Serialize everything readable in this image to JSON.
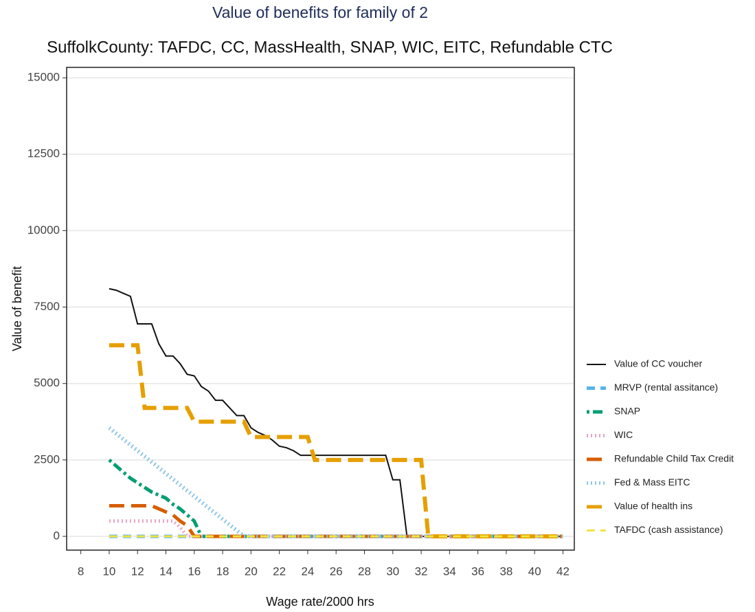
{
  "chart_data": {
    "type": "line",
    "title": "Value of benefits for family of 2",
    "subtitle": "SuffolkCounty: TAFDC, CC, MassHealth, SNAP, WIC, EITC, Refundable CTC",
    "x_label": "Wage rate/2000 hrs",
    "y_label": "Value of benefit",
    "xlim": [
      7,
      42.8
    ],
    "ylim": [
      -450,
      15340
    ],
    "xticks": [
      8,
      10,
      12,
      14,
      16,
      18,
      20,
      22,
      24,
      26,
      28,
      30,
      32,
      34,
      36,
      38,
      40,
      42
    ],
    "yticks": [
      0,
      2500,
      5000,
      7500,
      10000,
      12500,
      15000
    ],
    "grid": true,
    "legend": "right",
    "x": [
      10,
      10.5,
      11,
      11.5,
      12,
      12.5,
      13,
      13.5,
      14,
      14.5,
      15,
      15.5,
      16,
      16.5,
      17,
      17.5,
      18,
      18.5,
      19,
      19.5,
      20,
      20.5,
      21,
      21.5,
      22,
      22.5,
      23,
      23.5,
      24,
      24.5,
      25,
      25.5,
      26,
      26.5,
      27,
      27.5,
      28,
      28.5,
      29,
      29.5,
      30,
      30.5,
      31,
      31.5,
      32,
      32.5,
      33,
      33.5,
      34,
      34.5,
      35,
      35.5,
      36,
      36.5,
      37,
      37.5,
      38,
      38.5,
      39,
      39.5,
      40,
      40.5,
      41,
      41.5,
      42
    ],
    "series": [
      {
        "name": "Value of CC voucher",
        "color": "#111111",
        "linestyle": "solid",
        "width": 2,
        "values": [
          8100,
          8050,
          7950,
          7850,
          6950,
          6950,
          6950,
          6300,
          5900,
          5900,
          5650,
          5300,
          5250,
          4900,
          4750,
          4450,
          4450,
          4200,
          3950,
          3950,
          3550,
          3400,
          3300,
          3150,
          2950,
          2900,
          2800,
          2650,
          2650,
          2650,
          2650,
          2650,
          2650,
          2650,
          2650,
          2650,
          2650,
          2650,
          2650,
          2650,
          1850,
          1850,
          0,
          0,
          0,
          0,
          0,
          0,
          0,
          0,
          0,
          0,
          0,
          0,
          0,
          0,
          0,
          0,
          0,
          0,
          0,
          0,
          0,
          0,
          0
        ]
      },
      {
        "name": "MRVP (rental assitance)",
        "color": "#56b4e9",
        "linestyle": "dashed",
        "width": 5,
        "values": [
          0,
          0,
          0,
          0,
          0,
          0,
          0,
          0,
          0,
          0,
          0,
          0,
          0,
          0,
          0,
          0,
          0,
          0,
          0,
          0,
          0,
          0,
          0,
          0,
          0,
          0,
          0,
          0,
          0,
          0,
          0,
          0,
          0,
          0,
          0,
          0,
          0,
          0,
          0,
          0,
          0,
          0,
          0,
          0,
          0,
          0,
          0,
          0,
          0,
          0,
          0,
          0,
          0,
          0,
          0,
          0,
          0,
          0,
          0,
          0,
          0,
          0,
          0,
          0,
          0
        ]
      },
      {
        "name": "SNAP",
        "color": "#009e73",
        "linestyle": "dotdash",
        "width": 5,
        "values": [
          2500,
          2300,
          2100,
          1900,
          1750,
          1600,
          1450,
          1350,
          1250,
          1050,
          900,
          700,
          500,
          0,
          0,
          0,
          0,
          0,
          0,
          0,
          0,
          0,
          0,
          0,
          0,
          0,
          0,
          0,
          0,
          0,
          0,
          0,
          0,
          0,
          0,
          0,
          0,
          0,
          0,
          0,
          0,
          0,
          0,
          0,
          0,
          0,
          0,
          0,
          0,
          0,
          0,
          0,
          0,
          0,
          0,
          0,
          0,
          0,
          0,
          0,
          0,
          0,
          0,
          0,
          0
        ]
      },
      {
        "name": "WIC",
        "color": "#e7a3c8",
        "linestyle": "dotted",
        "width": 5,
        "values": [
          500,
          500,
          500,
          500,
          500,
          500,
          500,
          500,
          500,
          500,
          300,
          0,
          0,
          0,
          0,
          0,
          0,
          0,
          0,
          0,
          0,
          0,
          0,
          0,
          0,
          0,
          0,
          0,
          0,
          0,
          0,
          0,
          0,
          0,
          0,
          0,
          0,
          0,
          0,
          0,
          0,
          0,
          0,
          0,
          0,
          0,
          0,
          0,
          0,
          0,
          0,
          0,
          0,
          0,
          0,
          0,
          0,
          0,
          0,
          0,
          0,
          0,
          0,
          0,
          0
        ]
      },
      {
        "name": "Refundable Child Tax Credit",
        "color": "#d55e00",
        "linestyle": "longdash",
        "width": 5,
        "values": [
          1000,
          1000,
          1000,
          1000,
          1000,
          1000,
          1000,
          900,
          800,
          700,
          500,
          350,
          0,
          0,
          0,
          0,
          0,
          0,
          0,
          0,
          0,
          0,
          0,
          0,
          0,
          0,
          0,
          0,
          0,
          0,
          0,
          0,
          0,
          0,
          0,
          0,
          0,
          0,
          0,
          0,
          0,
          0,
          0,
          0,
          0,
          0,
          0,
          0,
          0,
          0,
          0,
          0,
          0,
          0,
          0,
          0,
          0,
          0,
          0,
          0,
          0,
          0,
          0,
          0,
          0
        ]
      },
      {
        "name": "Fed & Mass EITC",
        "color": "#8ec6e6",
        "linestyle": "dotted",
        "width": 6,
        "values": [
          3550,
          3363,
          3176,
          2989,
          2803,
          2616,
          2429,
          2242,
          2055,
          1868,
          1682,
          1495,
          1308,
          1121,
          934,
          747,
          561,
          374,
          187,
          0,
          0,
          0,
          0,
          0,
          0,
          0,
          0,
          0,
          0,
          0,
          0,
          0,
          0,
          0,
          0,
          0,
          0,
          0,
          0,
          0,
          0,
          0,
          0,
          0,
          0,
          0,
          0,
          0,
          0,
          0,
          0,
          0,
          0,
          0,
          0,
          0,
          0,
          0,
          0,
          0,
          0,
          0,
          0,
          0,
          0
        ]
      },
      {
        "name": "Value of health ins",
        "color": "#e69f00",
        "linestyle": "longdash",
        "width": 6,
        "values": [
          6250,
          6250,
          6250,
          6250,
          6250,
          4200,
          4200,
          4200,
          4200,
          4200,
          4200,
          4200,
          3750,
          3750,
          3750,
          3750,
          3750,
          3750,
          3750,
          3750,
          3250,
          3250,
          3250,
          3250,
          3250,
          3250,
          3250,
          3250,
          3250,
          2500,
          2500,
          2500,
          2500,
          2500,
          2500,
          2500,
          2500,
          2500,
          2500,
          2500,
          2500,
          2500,
          2500,
          2500,
          2500,
          0,
          0,
          0,
          0,
          0,
          0,
          0,
          0,
          0,
          0,
          0,
          0,
          0,
          0,
          0,
          0,
          0,
          0,
          0,
          0
        ]
      },
      {
        "name": "TAFDC (cash assistance)",
        "color": "#f0e442",
        "linestyle": "dashed",
        "width": 3,
        "values": [
          0,
          0,
          0,
          0,
          0,
          0,
          0,
          0,
          0,
          0,
          0,
          0,
          0,
          0,
          0,
          0,
          0,
          0,
          0,
          0,
          0,
          0,
          0,
          0,
          0,
          0,
          0,
          0,
          0,
          0,
          0,
          0,
          0,
          0,
          0,
          0,
          0,
          0,
          0,
          0,
          0,
          0,
          0,
          0,
          0,
          0,
          0,
          0,
          0,
          0,
          0,
          0,
          0,
          0,
          0,
          0,
          0,
          0,
          0,
          0,
          0,
          0,
          0,
          0,
          0
        ]
      }
    ]
  }
}
